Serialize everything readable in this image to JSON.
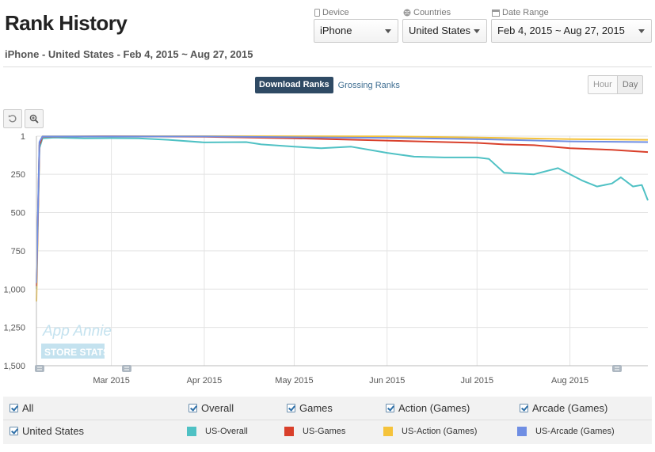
{
  "header": {
    "title": "Rank History",
    "subtitle": "iPhone - United States - Feb 4, 2015 ~ Aug 27, 2015"
  },
  "filters": {
    "device": {
      "label": "Device",
      "value": "iPhone"
    },
    "countries": {
      "label": "Countries",
      "value": "United States"
    },
    "date_range": {
      "label": "Date Range",
      "value": "Feb 4, 2015 ~ Aug 27, 2015"
    }
  },
  "rank_type": {
    "download": "Download Ranks",
    "grossing": "Grossing Ranks"
  },
  "granularity": {
    "hour": "Hour",
    "day": "Day"
  },
  "watermark": {
    "line1": "App Annie",
    "line2": "STORE STATS"
  },
  "legend": {
    "checkboxes": [
      "All",
      "Overall",
      "Games",
      "Action (Games)",
      "Arcade (Games)"
    ],
    "country": "United States",
    "series_labels": [
      "US-Overall",
      "US-Games",
      "US-Action (Games)",
      "US-Arcade (Games)"
    ]
  },
  "chart_data": {
    "type": "line",
    "y_axis": {
      "reversed": true,
      "ylim": [
        1,
        1500
      ],
      "ticks": [
        "1",
        "250",
        "500",
        "750",
        "1,000",
        "1,250",
        "1,500"
      ]
    },
    "x_axis": {
      "start": "2015-02-04",
      "end": "2015-08-27",
      "ticks": [
        "Mar 2015",
        "Apr 2015",
        "May 2015",
        "Jun 2015",
        "Jul 2015",
        "Aug 2015"
      ]
    },
    "grid": true,
    "series": [
      {
        "name": "US-Overall",
        "color": "#4fc1c4",
        "points": [
          [
            "2015-02-04",
            1000
          ],
          [
            "2015-02-05",
            80
          ],
          [
            "2015-02-06",
            15
          ],
          [
            "2015-02-10",
            10
          ],
          [
            "2015-02-20",
            15
          ],
          [
            "2015-03-01",
            14
          ],
          [
            "2015-03-10",
            15
          ],
          [
            "2015-03-20",
            25
          ],
          [
            "2015-04-01",
            42
          ],
          [
            "2015-04-15",
            40
          ],
          [
            "2015-04-20",
            55
          ],
          [
            "2015-05-01",
            70
          ],
          [
            "2015-05-10",
            80
          ],
          [
            "2015-05-20",
            70
          ],
          [
            "2015-06-01",
            110
          ],
          [
            "2015-06-10",
            135
          ],
          [
            "2015-06-20",
            140
          ],
          [
            "2015-07-01",
            140
          ],
          [
            "2015-07-05",
            150
          ],
          [
            "2015-07-10",
            240
          ],
          [
            "2015-07-20",
            250
          ],
          [
            "2015-07-28",
            210
          ],
          [
            "2015-08-05",
            290
          ],
          [
            "2015-08-10",
            330
          ],
          [
            "2015-08-15",
            310
          ],
          [
            "2015-08-18",
            270
          ],
          [
            "2015-08-22",
            330
          ],
          [
            "2015-08-25",
            320
          ],
          [
            "2015-08-27",
            420
          ]
        ]
      },
      {
        "name": "US-Games",
        "color": "#d9402b",
        "points": [
          [
            "2015-02-04",
            980
          ],
          [
            "2015-02-05",
            60
          ],
          [
            "2015-02-06",
            5
          ],
          [
            "2015-03-01",
            2
          ],
          [
            "2015-04-01",
            5
          ],
          [
            "2015-05-01",
            15
          ],
          [
            "2015-06-01",
            30
          ],
          [
            "2015-07-01",
            45
          ],
          [
            "2015-07-10",
            55
          ],
          [
            "2015-07-20",
            60
          ],
          [
            "2015-08-01",
            80
          ],
          [
            "2015-08-15",
            90
          ],
          [
            "2015-08-27",
            105
          ]
        ]
      },
      {
        "name": "US-Action (Games)",
        "color": "#f5c33b",
        "points": [
          [
            "2015-02-04",
            1080
          ],
          [
            "2015-02-05",
            50
          ],
          [
            "2015-02-06",
            2
          ],
          [
            "2015-04-01",
            1
          ],
          [
            "2015-06-01",
            2
          ],
          [
            "2015-07-01",
            10
          ],
          [
            "2015-08-01",
            20
          ],
          [
            "2015-08-27",
            25
          ]
        ]
      },
      {
        "name": "US-Arcade (Games)",
        "color": "#6f8ee3",
        "points": [
          [
            "2015-02-04",
            960
          ],
          [
            "2015-02-05",
            40
          ],
          [
            "2015-02-06",
            3
          ],
          [
            "2015-04-01",
            3
          ],
          [
            "2015-05-01",
            8
          ],
          [
            "2015-06-01",
            12
          ],
          [
            "2015-07-01",
            20
          ],
          [
            "2015-08-01",
            35
          ],
          [
            "2015-08-27",
            40
          ]
        ]
      }
    ]
  }
}
